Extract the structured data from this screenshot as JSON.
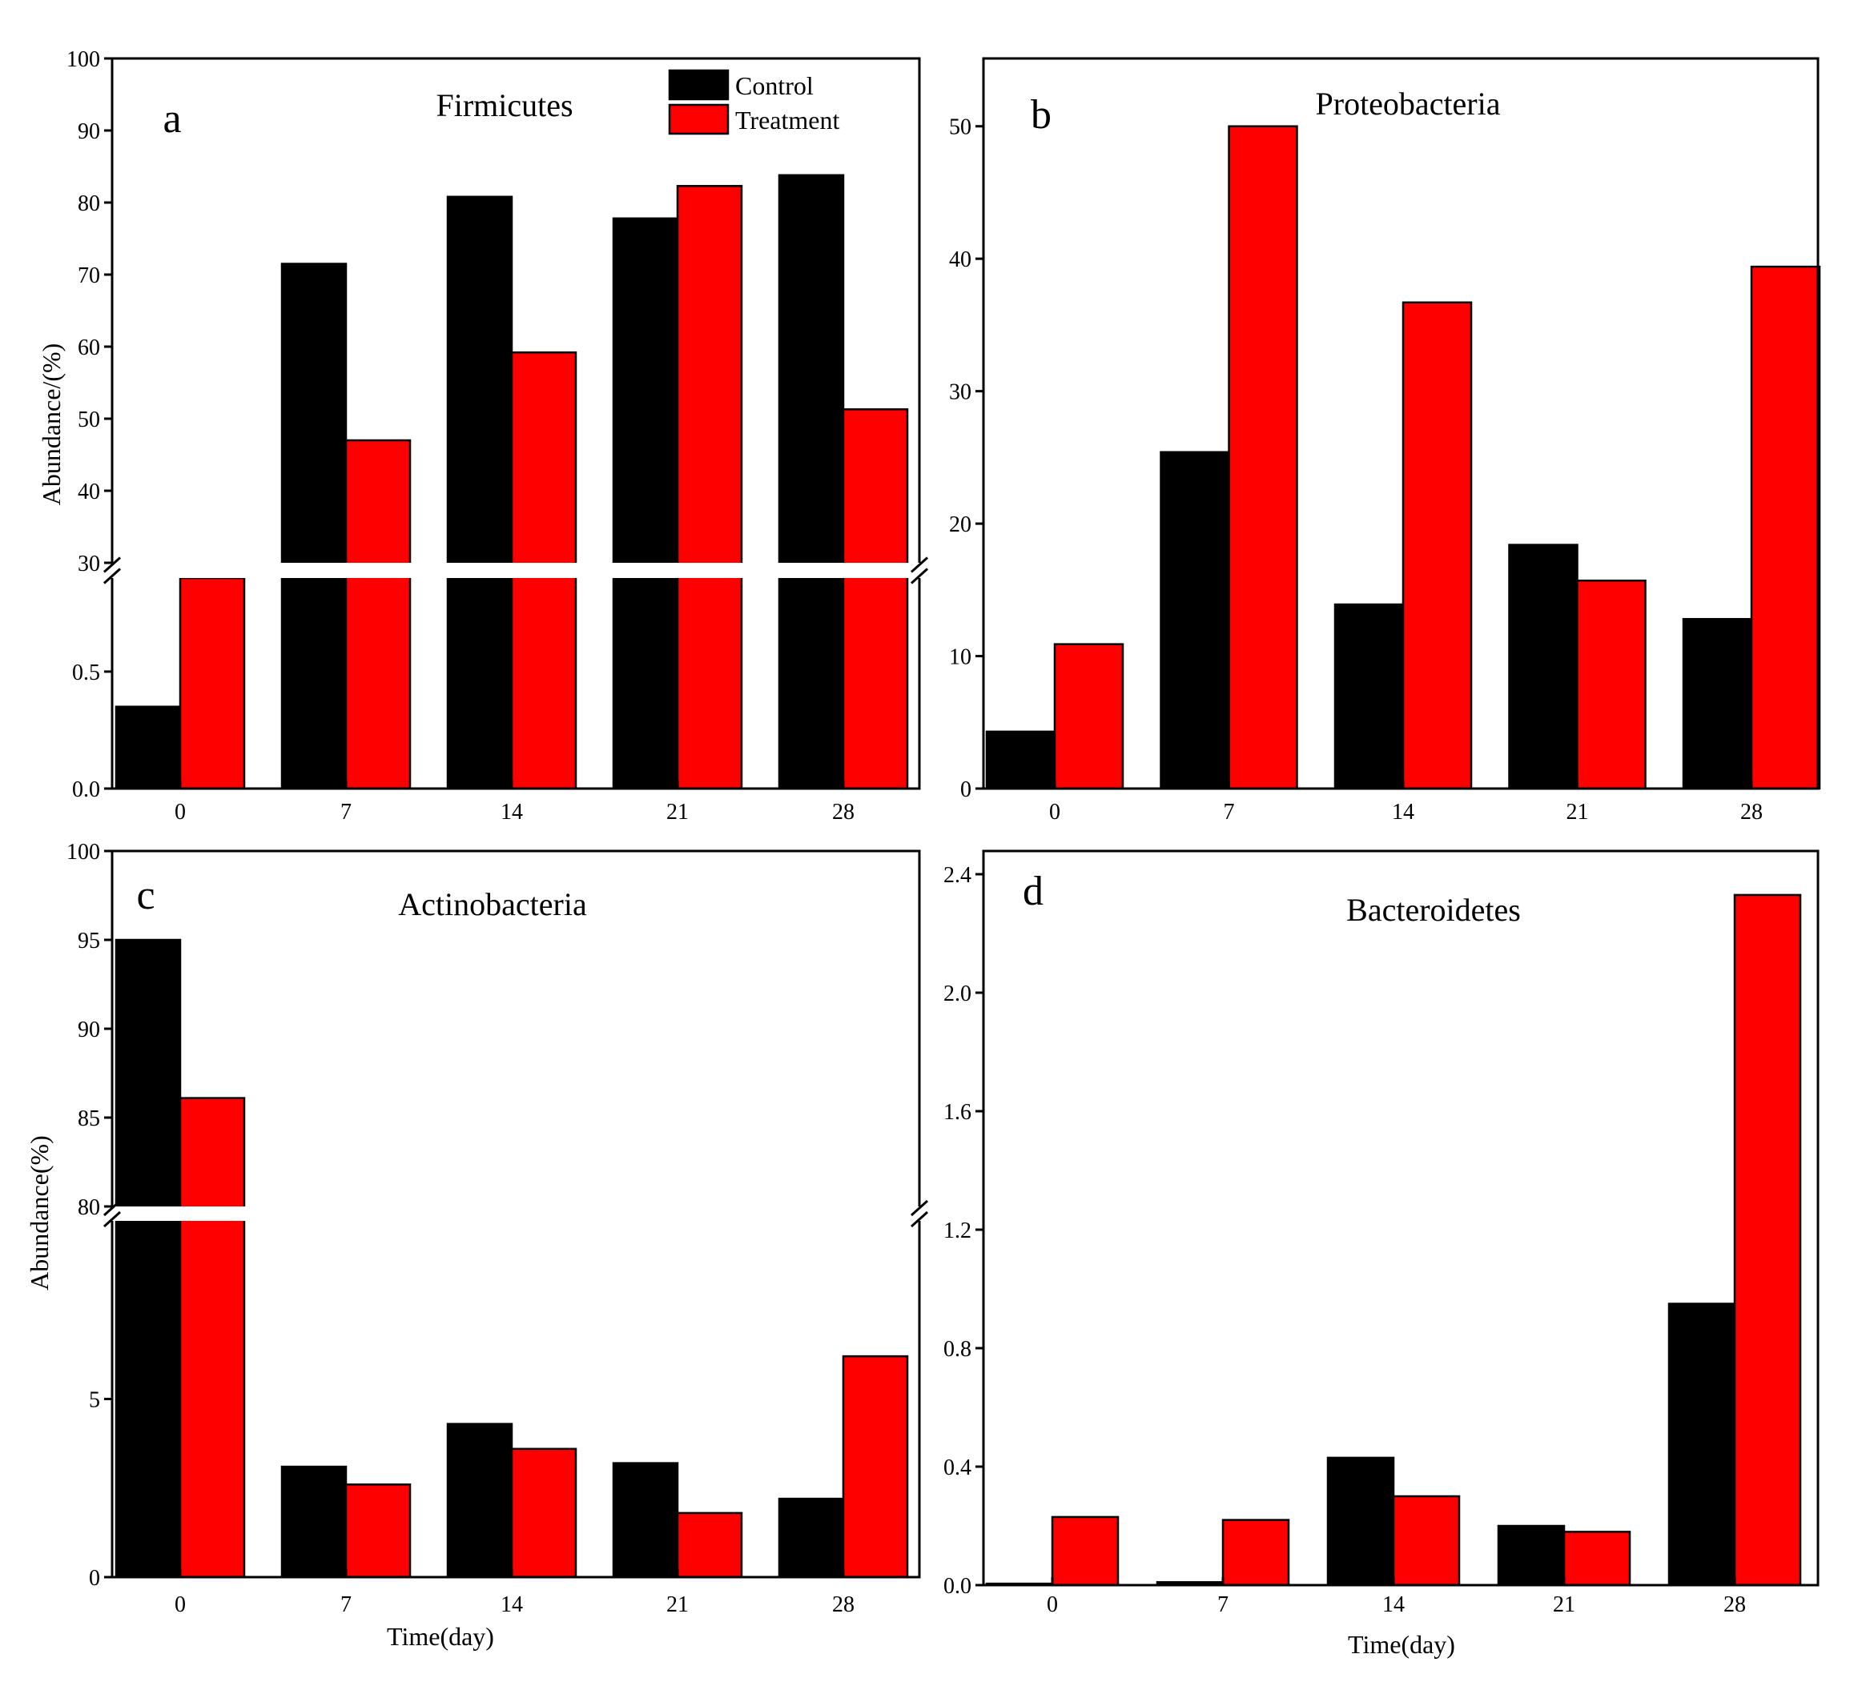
{
  "colors": {
    "control": "#000000",
    "treatment": "#ff0000",
    "axis": "#000000",
    "background": "#ffffff"
  },
  "chart_data": [
    {
      "panel": "a",
      "type": "bar",
      "title": "Firmicutes",
      "categories": [
        "0",
        "7",
        "14",
        "21",
        "28"
      ],
      "series": [
        {
          "name": "Control",
          "values": [
            0.35,
            71.5,
            80.8,
            77.8,
            83.8
          ]
        },
        {
          "name": "Treatment",
          "values": [
            0.9,
            47.0,
            59.2,
            82.3,
            51.3
          ]
        }
      ],
      "ylabel": "Abundance/(%)",
      "xlabel": "",
      "legend": "top-right",
      "axis_break": true,
      "y_lower": {
        "range": [
          0,
          0.9
        ],
        "ticks": [
          0.0,
          0.5
        ],
        "tick_labels": [
          "0.0",
          "0.5"
        ]
      },
      "y_upper": {
        "range": [
          30,
          100
        ],
        "ticks": [
          30,
          40,
          50,
          60,
          70,
          80,
          90,
          100
        ],
        "tick_labels": [
          "30",
          "40",
          "50",
          "60",
          "70",
          "80",
          "90",
          "100"
        ]
      }
    },
    {
      "panel": "b",
      "type": "bar",
      "title": "Proteobacteria",
      "categories": [
        "0",
        "7",
        "14",
        "21",
        "28"
      ],
      "series": [
        {
          "name": "Control",
          "values": [
            4.3,
            25.4,
            13.9,
            18.4,
            12.8
          ]
        },
        {
          "name": "Treatment",
          "values": [
            10.9,
            50.0,
            36.7,
            15.7,
            39.4
          ]
        }
      ],
      "ylabel": "",
      "xlabel": "",
      "axis_break": false,
      "ylim": [
        0,
        55
      ],
      "ticks": [
        0,
        10,
        20,
        30,
        40,
        50
      ],
      "tick_labels": [
        "0",
        "10",
        "20",
        "30",
        "40",
        "50"
      ]
    },
    {
      "panel": "c",
      "type": "bar",
      "title": "Actinobacteria",
      "categories": [
        "0",
        "7",
        "14",
        "21",
        "28"
      ],
      "series": [
        {
          "name": "Control",
          "values": [
            95.0,
            3.1,
            4.3,
            3.2,
            2.2
          ]
        },
        {
          "name": "Treatment",
          "values": [
            86.1,
            2.6,
            3.6,
            1.8,
            6.2
          ]
        }
      ],
      "ylabel": "Abundance(%)",
      "xlabel": "Time(day)",
      "axis_break": true,
      "y_lower": {
        "range": [
          0,
          10
        ],
        "ticks": [
          0,
          5
        ],
        "tick_labels": [
          "0",
          "5"
        ]
      },
      "y_upper": {
        "range": [
          80,
          100
        ],
        "ticks": [
          80,
          85,
          90,
          95,
          100
        ],
        "tick_labels": [
          "80",
          "85",
          "90",
          "95",
          "100"
        ]
      }
    },
    {
      "panel": "d",
      "type": "bar",
      "title": "Bacteroidetes",
      "categories": [
        "0",
        "7",
        "14",
        "21",
        "28"
      ],
      "series": [
        {
          "name": "Control",
          "values": [
            0.005,
            0.01,
            0.43,
            0.2,
            0.95
          ]
        },
        {
          "name": "Treatment",
          "values": [
            0.23,
            0.22,
            0.3,
            0.18,
            2.33
          ]
        }
      ],
      "ylabel": "",
      "xlabel": "Time(day)",
      "axis_break": false,
      "ylim": [
        0,
        2.5
      ],
      "ticks": [
        0.0,
        0.4,
        0.8,
        1.2,
        1.6,
        2.0,
        2.4
      ],
      "tick_labels": [
        "0.0",
        "0.4",
        "0.8",
        "1.2",
        "1.6",
        "2.0",
        "2.4"
      ]
    }
  ]
}
